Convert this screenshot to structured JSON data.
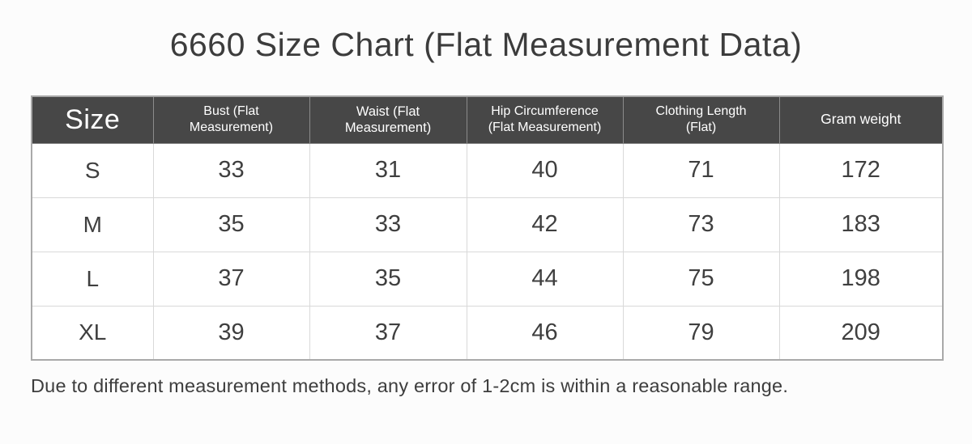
{
  "title": "6660 Size Chart (Flat Measurement Data)",
  "table": {
    "columns": [
      {
        "label": "Size"
      },
      {
        "label": "Bust (Flat\nMeasurement)"
      },
      {
        "label": "Waist  (Flat Measurement)"
      },
      {
        "label": "Hip Circumference\n(Flat Measurement)"
      },
      {
        "label": "Clothing Length\n(Flat)"
      },
      {
        "label": "Gram weight"
      }
    ],
    "rows": [
      {
        "cells": [
          "S",
          "33",
          "31",
          "40",
          "71",
          "172"
        ]
      },
      {
        "cells": [
          "M",
          "35",
          "33",
          "42",
          "73",
          "183"
        ]
      },
      {
        "cells": [
          "L",
          "37",
          "35",
          "44",
          "75",
          "198"
        ]
      },
      {
        "cells": [
          "XL",
          "39",
          "37",
          "46",
          "79",
          "209"
        ]
      }
    ]
  },
  "footnote": "Due to different measurement methods, any error of 1-2cm is within a reasonable range.",
  "colors": {
    "page_background": "#fcfcfc",
    "header_background": "#474747",
    "header_text": "#ffffff",
    "body_text": "#3f3f3f",
    "outer_border": "#a9a9a9",
    "inner_border": "#d9d9d9",
    "header_separator": "#8b8b8b"
  },
  "chart_data": {
    "type": "table",
    "title": "6660 Size Chart (Flat Measurement Data)",
    "columns": [
      "Size",
      "Bust (Flat Measurement)",
      "Waist (Flat Measurement)",
      "Hip Circumference (Flat Measurement)",
      "Clothing Length (Flat)",
      "Gram weight"
    ],
    "rows": [
      [
        "S",
        33,
        31,
        40,
        71,
        172
      ],
      [
        "M",
        35,
        33,
        42,
        73,
        183
      ],
      [
        "L",
        37,
        35,
        44,
        75,
        198
      ],
      [
        "XL",
        39,
        37,
        46,
        79,
        209
      ]
    ],
    "note": "Due to different measurement methods, any error of 1-2cm is within a reasonable range."
  }
}
